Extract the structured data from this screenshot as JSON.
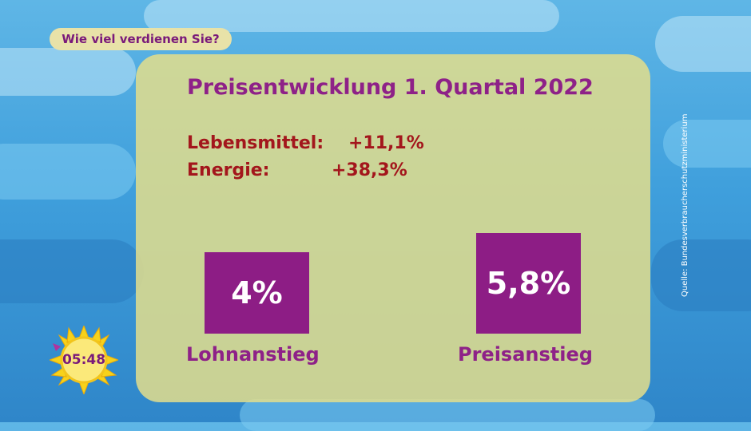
{
  "topic": "Wie viel verdienen Sie?",
  "title": "Preisentwicklung 1. Quartal 2022",
  "stats": [
    {
      "label": "Lebensmittel:",
      "value": "+11,1%"
    },
    {
      "label": "Energie:",
      "value": "+38,3%"
    }
  ],
  "cards": [
    {
      "value": "4%",
      "caption": "Lohnanstieg"
    },
    {
      "value": "5,8%",
      "caption": "Preisanstieg"
    }
  ],
  "source": "Quelle: Bundesverbraucherschutzministerium",
  "clock": "05:48",
  "colors": {
    "accent": "#8d1d85",
    "stat_text": "#a3161c",
    "panel": "#e2dd8c",
    "sun": "#f7d21a"
  }
}
